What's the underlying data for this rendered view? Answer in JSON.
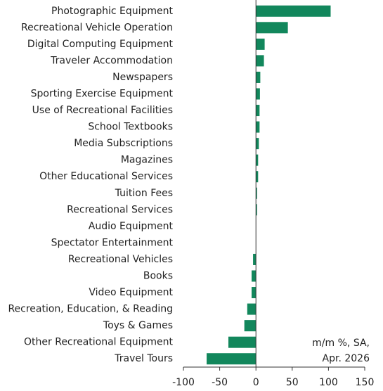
{
  "chart_data": {
    "type": "bar",
    "orientation": "horizontal",
    "categories": [
      "Photographic Equipment",
      "Recreational Vehicle Operation",
      "Digital Computing Equipment",
      "Traveler Accommodation",
      "Newspapers",
      "Sporting Exercise Equipment",
      "Use of Recreational Facilities",
      "School Textbooks",
      "Media Subscriptions",
      "Magazines",
      "Other Educational Services",
      "Tuition Fees",
      "Recreational Services",
      "Audio Equipment",
      "Spectator Entertainment",
      "Recreational Vehicles",
      "Books",
      "Video Equipment",
      "Recreation, Education, & Reading",
      "Toys & Games",
      "Other Recreational Equipment",
      "Travel Tours"
    ],
    "values": [
      103,
      44,
      12,
      11,
      6,
      5.5,
      5,
      5,
      4,
      3,
      3,
      1.5,
      1.5,
      0,
      0.2,
      -4,
      -6,
      -6,
      -12,
      -16,
      -38,
      -68
    ],
    "color": "#12875c",
    "xlim": [
      -100,
      150
    ],
    "xticks": [
      -100,
      -50,
      0,
      50,
      100,
      150
    ],
    "annotation": [
      "m/m %, SA,",
      "Apr. 2026"
    ]
  }
}
